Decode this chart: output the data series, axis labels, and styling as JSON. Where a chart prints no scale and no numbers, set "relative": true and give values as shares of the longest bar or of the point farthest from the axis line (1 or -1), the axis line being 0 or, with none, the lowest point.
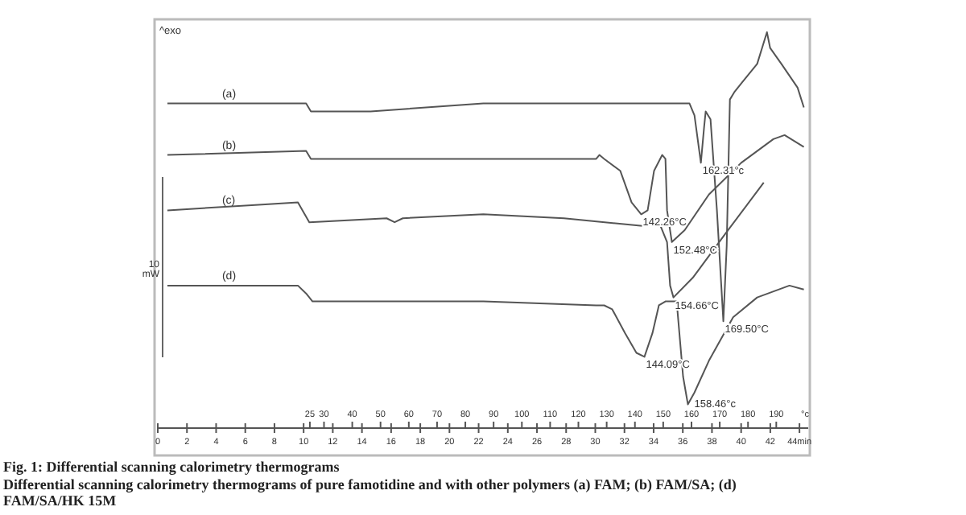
{
  "chart_data": {
    "type": "line",
    "title": "Fig. 1: Differential scanning calorimetry thermograms",
    "subtitle": "Differential scanning calorimetry thermograms of pure famotidine and with other polymers (a) FAM; (b) FAM/SA; (d) FAM/SA/HK 15M",
    "relative": true,
    "xlim": [
      0,
      44.6
    ],
    "xticks": [
      0,
      2,
      4,
      6,
      8,
      10,
      12,
      14,
      16,
      18,
      20,
      22,
      24,
      26,
      28,
      30,
      32,
      34,
      36,
      38,
      40,
      42,
      {
        "value": 44,
        "label": "44min"
      }
    ],
    "x2lim": [
      -28.8,
      201.3
    ],
    "x2label": "°c",
    "x2ticks": [
      25,
      30,
      40,
      50,
      60,
      70,
      80,
      90,
      100,
      110,
      120,
      130,
      140,
      150,
      160,
      170,
      180,
      190
    ],
    "grid": false,
    "marker": "none",
    "line_style": "solid",
    "series": [
      {
        "name": "(a)",
        "color": "#555555",
        "x": [
          0.66,
          10.17,
          10.5,
          14.59,
          22.32,
          26.74,
          33.37,
          36.46,
          36.8,
          37.24,
          37.46,
          37.57,
          37.9,
          38.34,
          38.78,
          39.01,
          39.23,
          39.56,
          40.0,
          41.1,
          41.77,
          41.99,
          42.76,
          43.87,
          44.3
        ],
        "values": [
          0.82,
          0.82,
          0.8,
          0.8,
          0.82,
          0.82,
          0.82,
          0.82,
          0.79,
          0.67,
          0.76,
          0.8,
          0.78,
          0.55,
          0.27,
          0.46,
          0.83,
          0.85,
          0.87,
          0.92,
          1,
          0.96,
          0.92,
          0.86,
          0.81
        ]
      },
      {
        "name": "(b)",
        "color": "#555555",
        "x": [
          0.66,
          10.17,
          10.5,
          22.32,
          30.06,
          30.28,
          30.61,
          31.71,
          32.49,
          33.15,
          33.59,
          34.03,
          34.59,
          34.81,
          34.92,
          35.25,
          36.13,
          37.79,
          40.0,
          42.21,
          42.98,
          44.3
        ],
        "values": [
          0.69,
          0.7,
          0.68,
          0.68,
          0.68,
          0.69,
          0.68,
          0.65,
          0.57,
          0.54,
          0.55,
          0.65,
          0.69,
          0.68,
          0.55,
          0.47,
          0.5,
          0.59,
          0.67,
          0.73,
          0.74,
          0.71
        ]
      },
      {
        "name": "(c)",
        "color": "#555555",
        "x": [
          0.66,
          9.61,
          10.39,
          15.69,
          16.24,
          16.8,
          22.32,
          27.85,
          33.37,
          34.03,
          34.48,
          34.92,
          35.13,
          35.36,
          36.69,
          38.9,
          41.55
        ],
        "values": [
          0.55,
          0.57,
          0.52,
          0.53,
          0.52,
          0.53,
          0.54,
          0.53,
          0.51,
          0.52,
          0.51,
          0.47,
          0.36,
          0.33,
          0.38,
          0.49,
          0.62
        ]
      },
      {
        "name": "(d)",
        "color": "#555555",
        "x": [
          0.66,
          9.61,
          10.17,
          10.61,
          22.32,
          30.06,
          30.28,
          30.61,
          31.16,
          32.04,
          32.82,
          33.37,
          33.92,
          34.36,
          34.81,
          35.58,
          36.02,
          36.35,
          36.8,
          37.79,
          39.45,
          41.1,
          43.31,
          44.3
        ],
        "values": [
          0.36,
          0.36,
          0.34,
          0.32,
          0.32,
          0.31,
          0.31,
          0.31,
          0.3,
          0.24,
          0.19,
          0.18,
          0.24,
          0.31,
          0.32,
          0.32,
          0.13,
          0.06,
          0.09,
          0.17,
          0.28,
          0.33,
          0.36,
          0.35
        ]
      }
    ],
    "annotations": [
      "^exo",
      "10 mW",
      {
        "text": "162.31°c",
        "x": 37.24,
        "y": 0.67
      },
      {
        "text": "142.26°C",
        "x": 33.15,
        "y": 0.54
      },
      {
        "text": "152.48°C",
        "x": 35.25,
        "y": 0.47
      },
      {
        "text": "154.66°C",
        "x": 35.36,
        "y": 0.33
      },
      {
        "text": "169.50°C",
        "x": 38.78,
        "y": 0.27
      },
      {
        "text": "144.09°C",
        "x": 33.37,
        "y": 0.18
      },
      {
        "text": "158.46°c",
        "x": 36.35,
        "y": 0.06
      }
    ]
  }
}
